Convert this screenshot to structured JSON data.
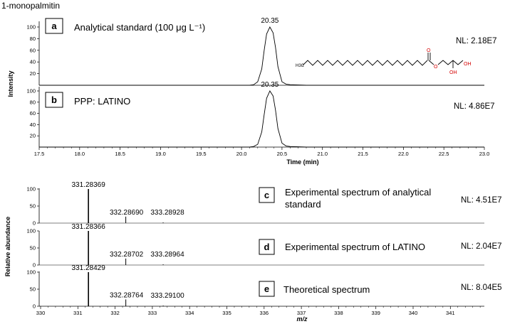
{
  "title": "1-monopalmitin",
  "chart_data": [
    {
      "type": "line",
      "ylabel": "Intensity",
      "xlabel": "Time (min)",
      "xlim": [
        17.5,
        23.0
      ],
      "ylim": [
        0,
        100
      ],
      "x_ticks": [
        "17.5",
        "18.0",
        "18.5",
        "19.0",
        "19.5",
        "20.0",
        "20.5",
        "21.0",
        "21.5",
        "22.0",
        "22.5",
        "23.0"
      ],
      "y_ticks": [
        "20",
        "40",
        "60",
        "80",
        "100"
      ],
      "panels": [
        {
          "letter": "a",
          "label": "Analytical standard (100 μg L⁻¹)",
          "nl": "NL: 2.18E7",
          "peak_label": "20.35",
          "x": [
            20.1,
            20.15,
            20.2,
            20.25,
            20.28,
            20.31,
            20.35,
            20.39,
            20.42,
            20.45,
            20.5,
            20.55,
            20.6,
            20.8
          ],
          "y": [
            0,
            1,
            6,
            28,
            60,
            88,
            100,
            90,
            65,
            32,
            6,
            2,
            1,
            0
          ]
        },
        {
          "letter": "b",
          "label": "PPP: LATINO",
          "nl": "NL: 4.86E7",
          "peak_label": "20.35",
          "x": [
            20.1,
            20.15,
            20.2,
            20.25,
            20.28,
            20.31,
            20.35,
            20.39,
            20.42,
            20.45,
            20.5,
            20.55,
            20.6,
            20.8
          ],
          "y": [
            0,
            1,
            5,
            27,
            58,
            87,
            100,
            91,
            66,
            33,
            7,
            2,
            1,
            0
          ]
        }
      ]
    },
    {
      "type": "bar",
      "ylabel": "Relative abundance",
      "xlabel": "m/z",
      "xlim": [
        330,
        341.8
      ],
      "ylim": [
        0,
        100
      ],
      "x_ticks": [
        "330",
        "331",
        "332",
        "333",
        "334",
        "335",
        "336",
        "337",
        "338",
        "339",
        "340",
        "341"
      ],
      "y_ticks": [
        "0",
        "50",
        "100"
      ],
      "panels": [
        {
          "letter": "c",
          "label_lines": [
            "Experimental spectrum of analytical",
            "standard"
          ],
          "nl": "NL: 4.51E7",
          "peaks": [
            {
              "mz": 331.28369,
              "rel": 100,
              "label": "331.28369"
            },
            {
              "mz": 332.2869,
              "rel": 19,
              "label": "332.28690"
            },
            {
              "mz": 333.28928,
              "rel": 2,
              "label": "333.28928"
            }
          ]
        },
        {
          "letter": "d",
          "label_lines": [
            "Experimental spectrum of LATINO"
          ],
          "nl": "NL: 2.04E7",
          "peaks": [
            {
              "mz": 331.28366,
              "rel": 100,
              "label": "331.28366"
            },
            {
              "mz": 332.28702,
              "rel": 19,
              "label": "332.28702"
            },
            {
              "mz": 333.28964,
              "rel": 2,
              "label": "333.28964"
            }
          ]
        },
        {
          "letter": "e",
          "label_lines": [
            "Theoretical spectrum"
          ],
          "nl": "NL: 8.04E5",
          "peaks": [
            {
              "mz": 331.28429,
              "rel": 100,
              "label": "331.28429"
            },
            {
              "mz": 332.28764,
              "rel": 20,
              "label": "332.28764"
            },
            {
              "mz": 333.291,
              "rel": 2,
              "label": "333.29100"
            }
          ]
        }
      ]
    }
  ],
  "structure": {
    "ch3_label": "H3C",
    "o_labels": [
      "O",
      "O"
    ],
    "oh_labels": [
      "OH",
      "OH"
    ]
  },
  "colors": {
    "line": "#000000",
    "oxygen": "#d40000"
  }
}
